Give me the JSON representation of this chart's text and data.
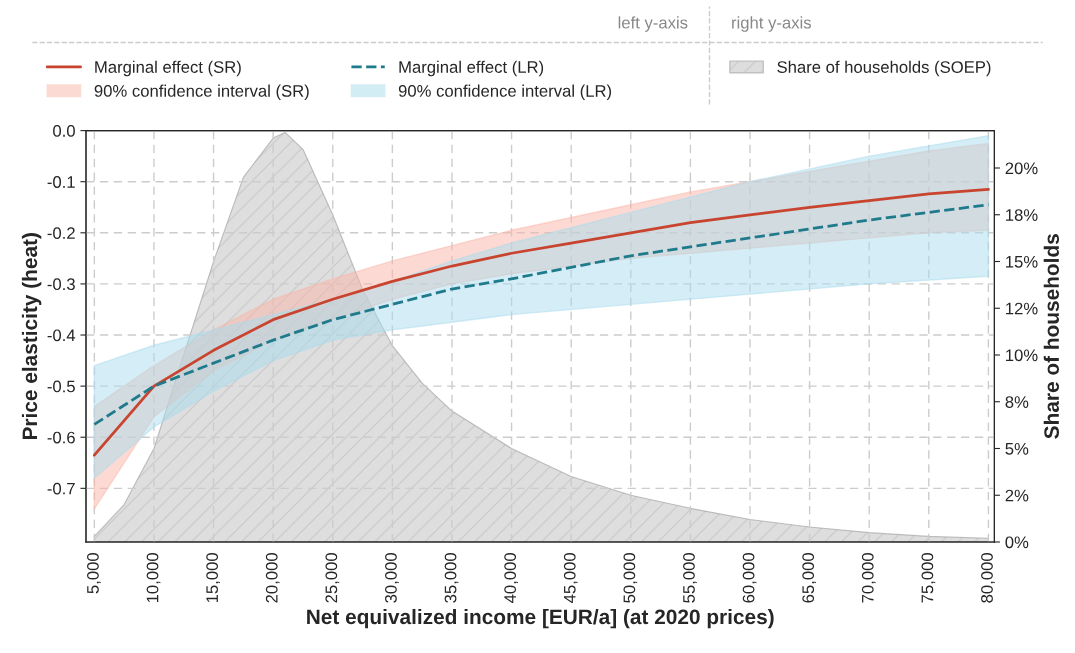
{
  "chart_data": {
    "type": "line",
    "xlabel": "Net equivalized income [EUR/a] (at 2020 prices)",
    "ylabel": "Price elasticity (heat)",
    "y2label": "Share of households",
    "annotations": [
      "left y-axis",
      "right y-axis",
      "90% confidence interval (SR)",
      "90% confidence interval (LR)"
    ],
    "xlim": [
      4300,
      80500
    ],
    "xticks": [
      {
        "value": 5000,
        "label": "5,000"
      },
      {
        "value": 10000,
        "label": "10,000"
      },
      {
        "value": 15000,
        "label": "15,000"
      },
      {
        "value": 20000,
        "label": "20,000"
      },
      {
        "value": 25000,
        "label": "25,000"
      },
      {
        "value": 30000,
        "label": "30,000"
      },
      {
        "value": 35000,
        "label": "35,000"
      },
      {
        "value": 40000,
        "label": "40,000"
      },
      {
        "value": 45000,
        "label": "45,000"
      },
      {
        "value": 50000,
        "label": "50,000"
      },
      {
        "value": 55000,
        "label": "55,000"
      },
      {
        "value": 60000,
        "label": "60,000"
      },
      {
        "value": 65000,
        "label": "65,000"
      },
      {
        "value": 70000,
        "label": "70,000"
      },
      {
        "value": 75000,
        "label": "75,000"
      },
      {
        "value": 80000,
        "label": "80,000"
      }
    ],
    "ylim": [
      -0.805,
      0
    ],
    "yticks": [
      {
        "value": 0,
        "label": "0.0"
      },
      {
        "value": -0.1,
        "label": "-0.1"
      },
      {
        "value": -0.2,
        "label": "-0.2"
      },
      {
        "value": -0.3,
        "label": "-0.3"
      },
      {
        "value": -0.4,
        "label": "-0.4"
      },
      {
        "value": -0.5,
        "label": "-0.5"
      },
      {
        "value": -0.6,
        "label": "-0.6"
      },
      {
        "value": -0.7,
        "label": "-0.7"
      }
    ],
    "y2lim": [
      0,
      22
    ],
    "y2ticks": [
      {
        "value": 0,
        "label": "0%"
      },
      {
        "value": 2.5,
        "label": "2%"
      },
      {
        "value": 5,
        "label": "5%"
      },
      {
        "value": 7.5,
        "label": "8%"
      },
      {
        "value": 10,
        "label": "10%"
      },
      {
        "value": 12.5,
        "label": "12%"
      },
      {
        "value": 15,
        "label": "15%"
      },
      {
        "value": 17.5,
        "label": "18%"
      },
      {
        "value": 20,
        "label": "20%"
      }
    ],
    "grid": true,
    "legend": "top",
    "series": [
      {
        "name": "Share of households (SOEP)",
        "type": "area",
        "axis": "y2",
        "color": "#c8c8c8",
        "x": [
          5000,
          7500,
          10000,
          12500,
          15000,
          17500,
          20000,
          21000,
          22500,
          25000,
          27500,
          30000,
          32500,
          35000,
          40000,
          45000,
          50000,
          55000,
          60000,
          65000,
          70000,
          75000,
          80000
        ],
        "values": [
          0.3,
          2,
          5,
          10,
          15,
          19.5,
          21.6,
          21.9,
          21,
          17.5,
          13.5,
          10.5,
          8.5,
          7,
          5,
          3.5,
          2.5,
          1.8,
          1.2,
          0.8,
          0.5,
          0.3,
          0.2
        ]
      },
      {
        "name": "Marginal effect (SR)",
        "color": "#c8442f",
        "line_style": "solid",
        "x": [
          5000,
          10000,
          15000,
          20000,
          25000,
          30000,
          35000,
          40000,
          45000,
          50000,
          55000,
          60000,
          65000,
          70000,
          75000,
          80000
        ],
        "values": [
          -0.635,
          -0.5,
          -0.43,
          -0.37,
          -0.33,
          -0.295,
          -0.265,
          -0.24,
          -0.22,
          -0.2,
          -0.18,
          -0.165,
          -0.15,
          -0.137,
          -0.124,
          -0.115
        ],
        "lower": [
          -0.74,
          -0.56,
          -0.47,
          -0.41,
          -0.37,
          -0.33,
          -0.3,
          -0.28,
          -0.265,
          -0.25,
          -0.24,
          -0.23,
          -0.22,
          -0.21,
          -0.2,
          -0.195
        ],
        "upper": [
          -0.54,
          -0.46,
          -0.39,
          -0.33,
          -0.29,
          -0.255,
          -0.225,
          -0.195,
          -0.17,
          -0.145,
          -0.12,
          -0.1,
          -0.08,
          -0.06,
          -0.04,
          -0.025
        ]
      },
      {
        "name": "Marginal effect (LR)",
        "color": "#1f7a8c",
        "line_style": "dashed",
        "x": [
          5000,
          10000,
          15000,
          20000,
          25000,
          30000,
          35000,
          40000,
          50000,
          60000,
          70000,
          80000
        ],
        "values": [
          -0.575,
          -0.5,
          -0.455,
          -0.41,
          -0.37,
          -0.34,
          -0.31,
          -0.29,
          -0.245,
          -0.21,
          -0.175,
          -0.145
        ],
        "lower": [
          -0.68,
          -0.58,
          -0.51,
          -0.45,
          -0.41,
          -0.39,
          -0.375,
          -0.36,
          -0.34,
          -0.32,
          -0.3,
          -0.285
        ],
        "upper": [
          -0.46,
          -0.42,
          -0.39,
          -0.36,
          -0.33,
          -0.295,
          -0.255,
          -0.22,
          -0.16,
          -0.1,
          -0.05,
          -0.01
        ]
      }
    ]
  }
}
